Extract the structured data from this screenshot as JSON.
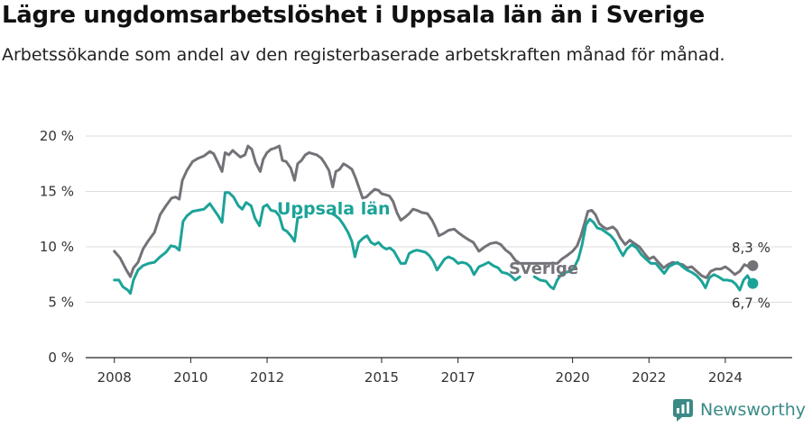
{
  "title": "Lägre ungdomsarbetslöshet i Uppsala län än i Sverige",
  "subtitle": "Arbetssökande som andel av den registerbaserade arbetskraften månad för månad.",
  "brand": "Newsworthy",
  "colors": {
    "sverige": "#747278",
    "uppsala": "#1ca398",
    "brand": "#3a8a86",
    "grid": "#dcdcdc"
  },
  "chart_data": {
    "type": "line",
    "title": "Lägre ungdomsarbetslöshet i Uppsala län än i Sverige",
    "subtitle": "Arbetssökande som andel av den registerbaserade arbetskraften månad för månad.",
    "xlabel": "",
    "ylabel": "",
    "x_tick_labels": [
      "2008",
      "2010",
      "2012",
      "2015",
      "2017",
      "2020",
      "2022",
      "2024"
    ],
    "x_tick_values": [
      2008,
      2010,
      2012,
      2015,
      2017,
      2020,
      2022,
      2024
    ],
    "y_tick_labels": [
      "0 %",
      "5 %",
      "10 %",
      "15 %",
      "20 %"
    ],
    "y_tick_values": [
      0,
      5,
      10,
      15,
      20
    ],
    "xlim": [
      2007.25,
      2025.75
    ],
    "ylim": [
      0,
      20
    ],
    "grid": true,
    "legend": "inline labels",
    "end_labels": {
      "sverige": "8,3 %",
      "uppsala": "6,7 %"
    },
    "series": [
      {
        "name": "Sverige",
        "key": "sverige",
        "points": [
          [
            2008.0,
            9.6
          ],
          [
            2008.15,
            9.0
          ],
          [
            2008.3,
            8.0
          ],
          [
            2008.42,
            7.3
          ],
          [
            2008.5,
            8.1
          ],
          [
            2008.62,
            8.6
          ],
          [
            2008.75,
            9.8
          ],
          [
            2008.9,
            10.6
          ],
          [
            2009.05,
            11.3
          ],
          [
            2009.2,
            12.9
          ],
          [
            2009.35,
            13.7
          ],
          [
            2009.5,
            14.4
          ],
          [
            2009.6,
            14.5
          ],
          [
            2009.7,
            14.3
          ],
          [
            2009.78,
            16.0
          ],
          [
            2009.9,
            16.9
          ],
          [
            2010.05,
            17.7
          ],
          [
            2010.2,
            18.0
          ],
          [
            2010.35,
            18.2
          ],
          [
            2010.5,
            18.6
          ],
          [
            2010.6,
            18.4
          ],
          [
            2010.7,
            17.7
          ],
          [
            2010.82,
            16.8
          ],
          [
            2010.9,
            18.5
          ],
          [
            2011.0,
            18.3
          ],
          [
            2011.1,
            18.7
          ],
          [
            2011.2,
            18.4
          ],
          [
            2011.3,
            18.1
          ],
          [
            2011.42,
            18.3
          ],
          [
            2011.5,
            19.1
          ],
          [
            2011.6,
            18.8
          ],
          [
            2011.7,
            17.6
          ],
          [
            2011.82,
            16.8
          ],
          [
            2011.9,
            17.9
          ],
          [
            2012.0,
            18.5
          ],
          [
            2012.1,
            18.8
          ],
          [
            2012.2,
            18.9
          ],
          [
            2012.32,
            19.1
          ],
          [
            2012.4,
            17.8
          ],
          [
            2012.5,
            17.7
          ],
          [
            2012.62,
            17.1
          ],
          [
            2012.72,
            16.0
          ],
          [
            2012.8,
            17.5
          ],
          [
            2012.9,
            17.8
          ],
          [
            2013.0,
            18.3
          ],
          [
            2013.1,
            18.5
          ],
          [
            2013.2,
            18.4
          ],
          [
            2013.3,
            18.3
          ],
          [
            2013.42,
            18.0
          ],
          [
            2013.5,
            17.6
          ],
          [
            2013.62,
            16.9
          ],
          [
            2013.72,
            15.4
          ],
          [
            2013.8,
            16.8
          ],
          [
            2013.9,
            17.0
          ],
          [
            2014.0,
            17.5
          ],
          [
            2014.1,
            17.3
          ],
          [
            2014.22,
            17.0
          ],
          [
            2014.32,
            16.2
          ],
          [
            2014.42,
            15.2
          ],
          [
            2014.5,
            14.4
          ],
          [
            2014.6,
            14.5
          ],
          [
            2014.72,
            14.9
          ],
          [
            2014.82,
            15.2
          ],
          [
            2014.92,
            15.1
          ],
          [
            2015.0,
            14.8
          ],
          [
            2015.1,
            14.7
          ],
          [
            2015.2,
            14.6
          ],
          [
            2015.3,
            14.1
          ],
          [
            2015.4,
            13.1
          ],
          [
            2015.5,
            12.4
          ],
          [
            2015.62,
            12.7
          ],
          [
            2015.72,
            13.0
          ],
          [
            2015.82,
            13.4
          ],
          [
            2015.92,
            13.3
          ],
          [
            2016.05,
            13.1
          ],
          [
            2016.2,
            13.0
          ],
          [
            2016.32,
            12.4
          ],
          [
            2016.42,
            11.7
          ],
          [
            2016.5,
            11.0
          ],
          [
            2016.62,
            11.2
          ],
          [
            2016.75,
            11.5
          ],
          [
            2016.9,
            11.6
          ],
          [
            2017.0,
            11.3
          ],
          [
            2017.12,
            11.0
          ],
          [
            2017.25,
            10.7
          ],
          [
            2017.4,
            10.4
          ],
          [
            2017.55,
            9.6
          ],
          [
            2017.7,
            10.0
          ],
          [
            2017.85,
            10.3
          ],
          [
            2018.0,
            10.4
          ],
          [
            2018.12,
            10.2
          ],
          [
            2018.25,
            9.7
          ],
          [
            2018.37,
            9.4
          ],
          [
            2018.5,
            8.8
          ],
          [
            2018.62,
            8.5
          ],
          [
            2019.6,
            8.5
          ],
          [
            2019.72,
            8.9
          ],
          [
            2019.85,
            9.2
          ],
          [
            2020.0,
            9.6
          ],
          [
            2020.12,
            10.1
          ],
          [
            2020.22,
            11.0
          ],
          [
            2020.32,
            12.2
          ],
          [
            2020.4,
            13.2
          ],
          [
            2020.5,
            13.3
          ],
          [
            2020.6,
            12.9
          ],
          [
            2020.7,
            12.1
          ],
          [
            2020.8,
            11.8
          ],
          [
            2020.9,
            11.6
          ],
          [
            2021.05,
            11.8
          ],
          [
            2021.15,
            11.5
          ],
          [
            2021.25,
            10.8
          ],
          [
            2021.38,
            10.2
          ],
          [
            2021.5,
            10.6
          ],
          [
            2021.62,
            10.3
          ],
          [
            2021.75,
            10.0
          ],
          [
            2021.88,
            9.4
          ],
          [
            2022.0,
            8.9
          ],
          [
            2022.12,
            9.1
          ],
          [
            2022.25,
            8.6
          ],
          [
            2022.38,
            8.1
          ],
          [
            2022.5,
            8.4
          ],
          [
            2022.62,
            8.6
          ],
          [
            2022.75,
            8.5
          ],
          [
            2022.88,
            8.4
          ],
          [
            2023.0,
            8.1
          ],
          [
            2023.12,
            8.2
          ],
          [
            2023.25,
            7.8
          ],
          [
            2023.38,
            7.4
          ],
          [
            2023.5,
            7.2
          ],
          [
            2023.62,
            7.8
          ],
          [
            2023.75,
            8.0
          ],
          [
            2023.88,
            8.0
          ],
          [
            2024.0,
            8.2
          ],
          [
            2024.12,
            7.9
          ],
          [
            2024.25,
            7.5
          ],
          [
            2024.38,
            7.8
          ],
          [
            2024.5,
            8.4
          ],
          [
            2024.62,
            8.2
          ],
          [
            2024.72,
            8.3
          ]
        ]
      },
      {
        "name": "Uppsala län",
        "key": "uppsala",
        "points": [
          [
            2008.0,
            7.0
          ],
          [
            2008.12,
            7.0
          ],
          [
            2008.22,
            6.4
          ],
          [
            2008.35,
            6.1
          ],
          [
            2008.42,
            5.8
          ],
          [
            2008.5,
            7.0
          ],
          [
            2008.62,
            7.9
          ],
          [
            2008.75,
            8.3
          ],
          [
            2008.9,
            8.5
          ],
          [
            2009.05,
            8.6
          ],
          [
            2009.2,
            9.1
          ],
          [
            2009.35,
            9.5
          ],
          [
            2009.48,
            10.1
          ],
          [
            2009.6,
            10.0
          ],
          [
            2009.7,
            9.7
          ],
          [
            2009.8,
            12.3
          ],
          [
            2009.9,
            12.8
          ],
          [
            2010.05,
            13.2
          ],
          [
            2010.2,
            13.3
          ],
          [
            2010.35,
            13.4
          ],
          [
            2010.5,
            13.9
          ],
          [
            2010.6,
            13.4
          ],
          [
            2010.72,
            12.8
          ],
          [
            2010.82,
            12.2
          ],
          [
            2010.9,
            14.9
          ],
          [
            2011.0,
            14.9
          ],
          [
            2011.12,
            14.5
          ],
          [
            2011.25,
            13.7
          ],
          [
            2011.35,
            13.4
          ],
          [
            2011.45,
            14.0
          ],
          [
            2011.58,
            13.7
          ],
          [
            2011.68,
            12.6
          ],
          [
            2011.8,
            11.9
          ],
          [
            2011.9,
            13.6
          ],
          [
            2012.0,
            13.8
          ],
          [
            2012.1,
            13.3
          ],
          [
            2012.22,
            13.2
          ],
          [
            2012.32,
            12.8
          ],
          [
            2012.42,
            11.6
          ],
          [
            2012.52,
            11.4
          ],
          [
            2012.62,
            11.0
          ],
          [
            2012.72,
            10.5
          ],
          [
            2012.8,
            12.6
          ],
          [
            2012.9,
            12.7
          ]
        ]
      },
      {
        "name": "Uppsala län",
        "key": "uppsala2",
        "points": [
          [
            2013.7,
            13.0
          ],
          [
            2013.8,
            12.8
          ],
          [
            2013.9,
            12.5
          ],
          [
            2014.0,
            12.0
          ],
          [
            2014.12,
            11.3
          ],
          [
            2014.22,
            10.5
          ],
          [
            2014.3,
            9.1
          ],
          [
            2014.4,
            10.4
          ],
          [
            2014.52,
            10.8
          ],
          [
            2014.62,
            11.0
          ],
          [
            2014.72,
            10.4
          ],
          [
            2014.82,
            10.2
          ],
          [
            2014.92,
            10.4
          ],
          [
            2015.02,
            10.0
          ],
          [
            2015.12,
            9.8
          ],
          [
            2015.22,
            9.9
          ],
          [
            2015.32,
            9.6
          ],
          [
            2015.42,
            9.0
          ],
          [
            2015.5,
            8.5
          ],
          [
            2015.62,
            8.5
          ],
          [
            2015.72,
            9.4
          ],
          [
            2015.82,
            9.6
          ],
          [
            2015.92,
            9.7
          ],
          [
            2016.05,
            9.6
          ],
          [
            2016.15,
            9.5
          ],
          [
            2016.25,
            9.2
          ],
          [
            2016.35,
            8.7
          ],
          [
            2016.45,
            7.9
          ],
          [
            2016.55,
            8.4
          ],
          [
            2016.65,
            8.9
          ],
          [
            2016.75,
            9.1
          ],
          [
            2016.88,
            8.9
          ],
          [
            2017.0,
            8.5
          ],
          [
            2017.1,
            8.6
          ],
          [
            2017.22,
            8.5
          ],
          [
            2017.32,
            8.2
          ],
          [
            2017.42,
            7.5
          ],
          [
            2017.55,
            8.2
          ],
          [
            2017.68,
            8.4
          ],
          [
            2017.8,
            8.6
          ],
          [
            2017.92,
            8.3
          ],
          [
            2018.05,
            8.1
          ],
          [
            2018.15,
            7.7
          ],
          [
            2018.28,
            7.6
          ],
          [
            2018.38,
            7.4
          ],
          [
            2018.5,
            7.0
          ],
          [
            2018.62,
            7.3
          ]
        ]
      },
      {
        "name": "Uppsala län",
        "key": "uppsala3",
        "points": [
          [
            2019.0,
            7.3
          ],
          [
            2019.15,
            7.0
          ],
          [
            2019.3,
            6.9
          ],
          [
            2019.42,
            6.4
          ],
          [
            2019.5,
            6.2
          ],
          [
            2019.6,
            7.0
          ],
          [
            2019.7,
            7.5
          ],
          [
            2019.82,
            7.7
          ],
          [
            2019.95,
            7.8
          ],
          [
            2020.05,
            8.2
          ],
          [
            2020.15,
            8.9
          ],
          [
            2020.25,
            10.2
          ],
          [
            2020.35,
            12.0
          ],
          [
            2020.45,
            12.5
          ],
          [
            2020.55,
            12.2
          ],
          [
            2020.65,
            11.7
          ],
          [
            2020.75,
            11.6
          ],
          [
            2020.88,
            11.3
          ],
          [
            2021.0,
            11.0
          ],
          [
            2021.12,
            10.5
          ],
          [
            2021.22,
            9.8
          ],
          [
            2021.32,
            9.2
          ],
          [
            2021.42,
            9.8
          ],
          [
            2021.55,
            10.2
          ],
          [
            2021.68,
            9.9
          ],
          [
            2021.8,
            9.3
          ],
          [
            2021.92,
            8.9
          ],
          [
            2022.05,
            8.5
          ],
          [
            2022.18,
            8.5
          ],
          [
            2022.3,
            8.0
          ],
          [
            2022.4,
            7.6
          ],
          [
            2022.52,
            8.2
          ],
          [
            2022.62,
            8.4
          ],
          [
            2022.75,
            8.6
          ],
          [
            2022.88,
            8.2
          ],
          [
            2023.0,
            7.9
          ],
          [
            2023.12,
            7.7
          ],
          [
            2023.25,
            7.4
          ],
          [
            2023.38,
            6.9
          ],
          [
            2023.48,
            6.3
          ],
          [
            2023.58,
            7.2
          ],
          [
            2023.7,
            7.5
          ],
          [
            2023.82,
            7.3
          ],
          [
            2023.95,
            7.0
          ],
          [
            2024.05,
            7.0
          ],
          [
            2024.18,
            6.9
          ],
          [
            2024.28,
            6.6
          ],
          [
            2024.38,
            6.1
          ],
          [
            2024.48,
            7.0
          ],
          [
            2024.58,
            7.4
          ],
          [
            2024.68,
            6.8
          ],
          [
            2024.72,
            6.7
          ]
        ]
      }
    ]
  }
}
